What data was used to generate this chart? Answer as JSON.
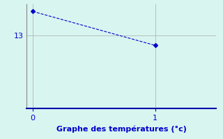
{
  "x": [
    0,
    1
  ],
  "y": [
    14.0,
    12.6
  ],
  "xlabel": "Graphe des températures (°c)",
  "xlim": [
    -0.05,
    1.5
  ],
  "ylim": [
    10.0,
    14.3
  ],
  "yticks": [
    13
  ],
  "xticks": [
    0,
    1
  ],
  "line_color": "#0000cc",
  "marker": "D",
  "marker_size": 3,
  "background_color": "#d8f5f0",
  "grid_color": "#aaaaaa",
  "bottom_spine_color": "#0000aa",
  "left_spine_color": "#888888",
  "label_color": "#0000cc",
  "tick_color": "#0000cc",
  "xlabel_fontsize": 8,
  "tick_fontsize": 8
}
